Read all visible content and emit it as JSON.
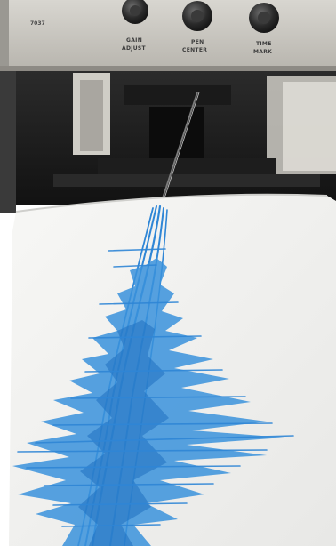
{
  "photo": {
    "panel_id": "7037",
    "knobs": [
      {
        "line1": "GAIN",
        "line2": "ADJUST"
      },
      {
        "line1": "PEN",
        "line2": "CENTER"
      },
      {
        "line1": "TIME",
        "line2": "MARK"
      }
    ]
  },
  "colors": {
    "panel": "#c9c6bf",
    "machine_dark": "#1f1f1f",
    "paper": "#f3f3f1",
    "ink": "#2f86d6"
  }
}
